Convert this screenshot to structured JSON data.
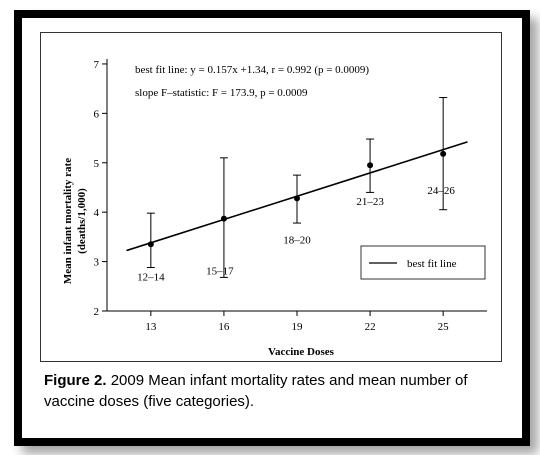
{
  "chart_data": {
    "type": "scatter",
    "x": [
      13,
      16,
      19,
      22,
      25
    ],
    "y": [
      3.35,
      3.87,
      4.28,
      4.95,
      5.18
    ],
    "yerr_low": [
      2.88,
      2.68,
      3.78,
      4.4,
      4.05
    ],
    "yerr_high": [
      3.98,
      5.1,
      4.75,
      5.48,
      6.32
    ],
    "point_labels": [
      "12–14",
      "15–17",
      "18–20",
      "21–23",
      "24–26"
    ],
    "fit": {
      "slope": 0.157,
      "intercept": 1.34,
      "x_range": [
        12,
        26
      ]
    },
    "x_ticks": [
      13,
      16,
      19,
      22,
      25
    ],
    "y_ticks": [
      2,
      3,
      4,
      5,
      6,
      7
    ],
    "xlim": [
      11.2,
      26.8
    ],
    "ylim": [
      2,
      7.1
    ],
    "xlabel": "Vaccine Doses",
    "ylabel_line1": "Mean infant mortality rate",
    "ylabel_line2": "(deaths/1,000)",
    "annotation_line1": "best fit line: y = 0.157x +1.34, r = 0.992 (p = 0.0009)",
    "annotation_line2": "slope F–statistic: F = 173.9, p = 0.0009",
    "legend": {
      "entry": "best fit line",
      "placement": "lower-right"
    },
    "grid": false
  },
  "caption": {
    "label": "Figure 2.",
    "text": "2009 Mean infant mortality rates and mean number of vaccine doses (five categories)."
  }
}
